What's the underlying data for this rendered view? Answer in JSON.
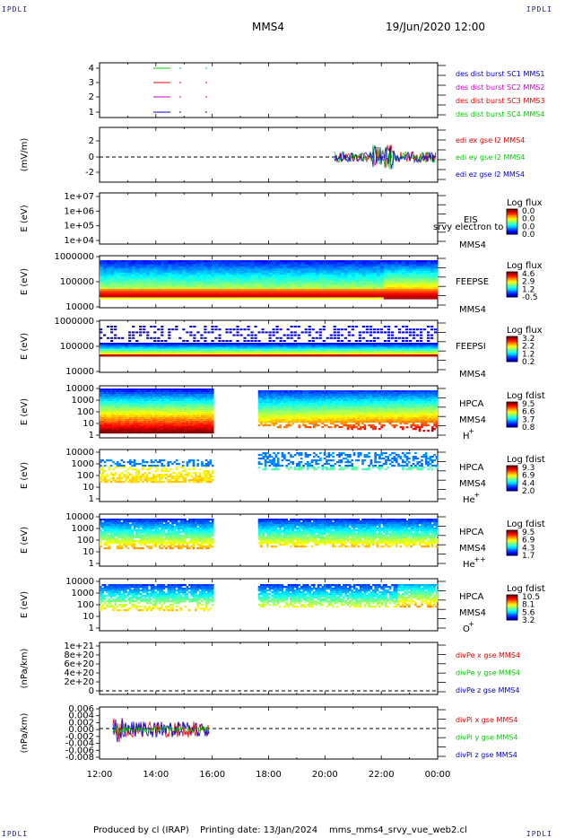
{
  "corner_label": "IPDLI",
  "header": {
    "title": "MMS4",
    "date": "19/Jun/2020 12:00"
  },
  "footer": {
    "produced": "Produced by cl (IRAP)",
    "printing": "Printing date: 13/Jan/2024",
    "script": "mms_mms4_srvy_vue_web2.cl"
  },
  "colors": {
    "red": "#e60000",
    "green": "#00cc00",
    "blue": "#0000cc",
    "magenta": "#cc00cc"
  },
  "chart_data": [
    {
      "type": "line",
      "panel": "des_burst",
      "ylim": [
        0.7,
        4.3
      ],
      "ticks": [
        "1",
        "2",
        "3",
        "4"
      ],
      "legend": [
        {
          "name": "des dist burst SC1 MMS1",
          "color": "#0000cc"
        },
        {
          "name": "des dist burst SC2 MMS2",
          "color": "#cc00cc"
        },
        {
          "name": "des dist burst SC3 MMS3",
          "color": "#e60000"
        },
        {
          "name": "des dist burst SC4 MMS4",
          "color": "#00cc00"
        }
      ]
    },
    {
      "type": "line",
      "panel": "edi",
      "ylabel": "(mV/m)",
      "ylim": [
        -3.5,
        3.5
      ],
      "ticks": [
        "2",
        "0",
        "-2"
      ],
      "legend": [
        {
          "name": "edi ex gse l2 MMS4",
          "color": "#e60000"
        },
        {
          "name": "edi ey gse l2 MMS4",
          "color": "#00cc00"
        },
        {
          "name": "edi ez gse l2 MMS4",
          "color": "#0000cc"
        }
      ]
    },
    {
      "type": "heatmap",
      "panel": "eis",
      "ylabel": "E (eV)",
      "ticks": [
        "1e+07",
        "1e+06",
        "1e+05",
        "1e+04"
      ],
      "inst": "EIS",
      "note": "srvy electron to",
      "sc": "MMS4",
      "cb_title": "Log flux",
      "cb_ticks": [
        "0.0",
        "0.0",
        "0.0",
        "0.0"
      ]
    },
    {
      "type": "heatmap",
      "panel": "feepse",
      "ylabel": "E (eV)",
      "ticks": [
        "1000000",
        "100000",
        "10000"
      ],
      "inst": "FEEPSE",
      "sc": "MMS4",
      "cb_title": "Log flux",
      "cb_ticks": [
        "4.6",
        "2.9",
        "1.2",
        "-0.5"
      ]
    },
    {
      "type": "heatmap",
      "panel": "feepsi",
      "ylabel": "E (eV)",
      "ticks": [
        "1000000",
        "100000",
        "10000"
      ],
      "inst": "FEEPSI",
      "sc": "MMS4",
      "cb_title": "Log flux",
      "cb_ticks": [
        "3.2",
        "2.2",
        "1.2",
        "0.2"
      ]
    },
    {
      "type": "heatmap",
      "panel": "hpca_h",
      "ylabel": "E (eV)",
      "ticks": [
        "10000",
        "1000",
        "100",
        "10",
        "1"
      ],
      "inst": "HPCA",
      "sc": "MMS4",
      "species": "H",
      "charge": "+",
      "cb_title": "Log fdist",
      "cb_ticks": [
        "9.5",
        "6.6",
        "3.7",
        "0.8"
      ]
    },
    {
      "type": "heatmap",
      "panel": "hpca_he",
      "ylabel": "E (eV)",
      "ticks": [
        "10000",
        "1000",
        "100",
        "10",
        "1"
      ],
      "inst": "HPCA",
      "sc": "MMS4",
      "species": "He",
      "charge": "+",
      "cb_title": "Log fdist",
      "cb_ticks": [
        "9.3",
        "6.9",
        "4.4",
        "2.0"
      ]
    },
    {
      "type": "heatmap",
      "panel": "hpca_he2",
      "ylabel": "E (eV)",
      "ticks": [
        "10000",
        "1000",
        "100",
        "10",
        "1"
      ],
      "inst": "HPCA",
      "sc": "MMS4",
      "species": "He",
      "charge": "++",
      "cb_title": "Log fdist",
      "cb_ticks": [
        "9.5",
        "6.9",
        "4.3",
        "1.7"
      ]
    },
    {
      "type": "heatmap",
      "panel": "hpca_o",
      "ylabel": "E (eV)",
      "ticks": [
        "10000",
        "1000",
        "100",
        "10",
        "1"
      ],
      "inst": "HPCA",
      "sc": "MMS4",
      "species": "O",
      "charge": "+",
      "cb_title": "Log fdist",
      "cb_ticks": [
        "10.5",
        "8.1",
        "5.6",
        "3.2"
      ]
    },
    {
      "type": "line",
      "panel": "divpe",
      "ylabel": "(nPa/km)",
      "ticks": [
        "1e+21",
        "8e+20",
        "6e+20",
        "4e+20",
        "2e+20",
        "0"
      ],
      "legend": [
        {
          "name": "divPe x gse MMS4",
          "color": "#e60000"
        },
        {
          "name": "divPe y gse MMS4",
          "color": "#00cc00"
        },
        {
          "name": "divPe z gse MMS4",
          "color": "#0000cc"
        }
      ]
    },
    {
      "type": "line",
      "panel": "divpi",
      "ylabel": "(nPa/km)",
      "ticks": [
        "0.006",
        "0.004",
        "0.002",
        "0.000",
        "-0.002",
        "-0.004",
        "-0.006",
        "-0.008"
      ],
      "legend": [
        {
          "name": "divPi x gse MMS4",
          "color": "#e60000"
        },
        {
          "name": "divPi y gse MMS4",
          "color": "#00cc00"
        },
        {
          "name": "divPi z gse MMS4",
          "color": "#0000cc"
        }
      ]
    }
  ],
  "x_axis": {
    "ticks": [
      "12:00",
      "14:00",
      "16:00",
      "18:00",
      "20:00",
      "22:00",
      "00:00"
    ]
  }
}
